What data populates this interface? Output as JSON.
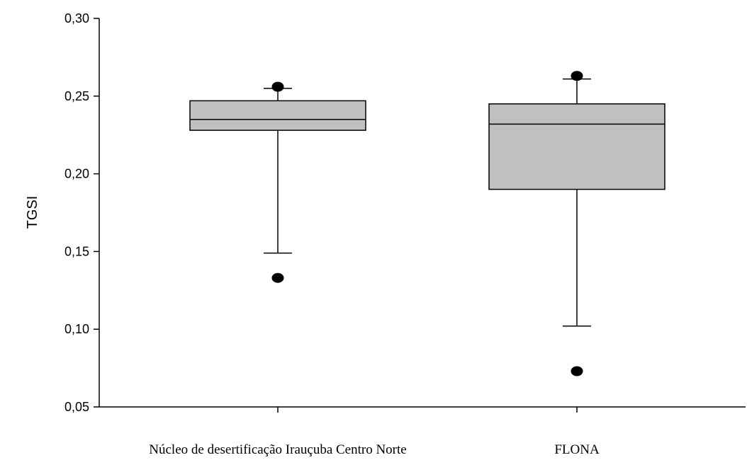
{
  "chart_data": {
    "type": "box",
    "title": "",
    "xlabel": "",
    "ylabel": "TGSI",
    "ylim": [
      0.05,
      0.3
    ],
    "y_ticks": [
      "0,05",
      "0,10",
      "0,15",
      "0,20",
      "0,25",
      "0,30"
    ],
    "y_tick_values": [
      0.05,
      0.1,
      0.15,
      0.2,
      0.25,
      0.3
    ],
    "grid": false,
    "legend": "none",
    "box_color": "#c0c0c0",
    "categories": [
      "Núcleo de desertificação Irauçuba Centro Norte",
      "FLONA"
    ],
    "boxes": [
      {
        "whisker_low": 0.149,
        "q1": 0.228,
        "median": 0.235,
        "q3": 0.247,
        "whisker_high": 0.255,
        "outliers": [
          0.133,
          0.256
        ]
      },
      {
        "whisker_low": 0.102,
        "q1": 0.19,
        "median": 0.232,
        "q3": 0.245,
        "whisker_high": 0.261,
        "outliers": [
          0.073,
          0.263
        ]
      }
    ]
  }
}
